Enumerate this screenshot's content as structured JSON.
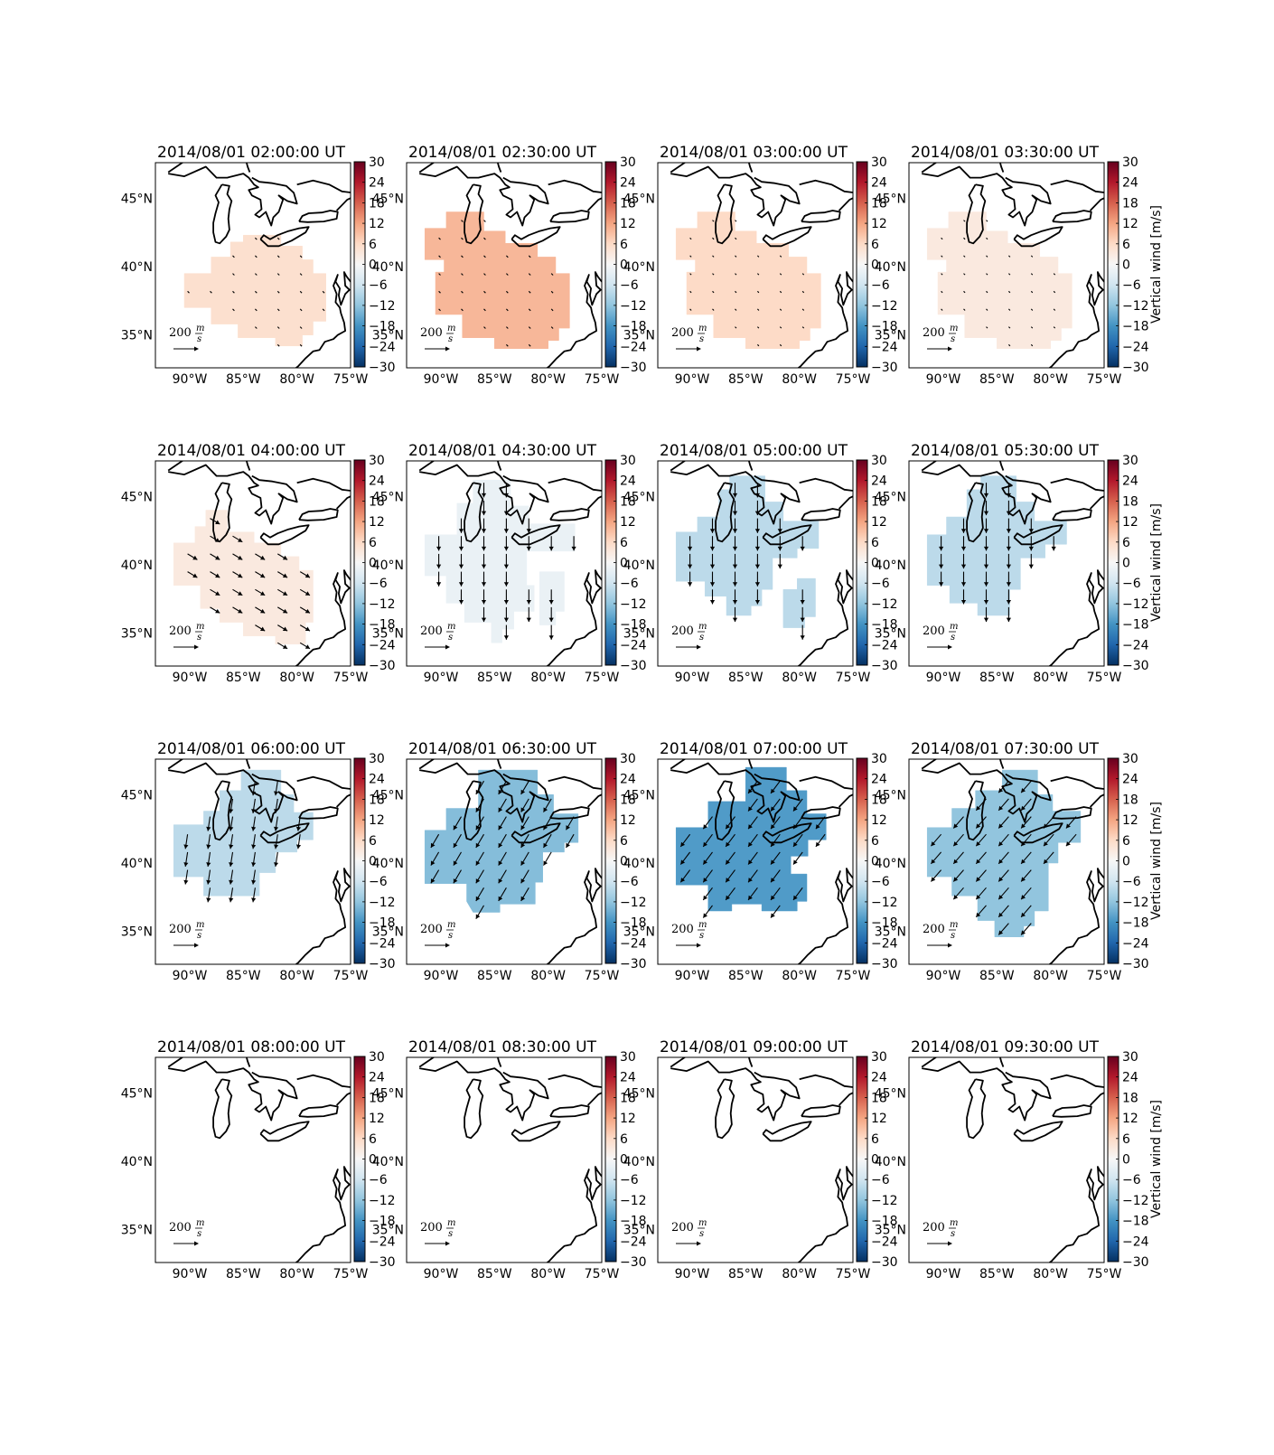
{
  "colorbar": {
    "ticks": [
      "30",
      "24",
      "18",
      "12",
      "6",
      "0",
      "−6",
      "−12",
      "−18",
      "−24",
      "−30"
    ],
    "label": "Vertical wind [m/s]",
    "vmin": -30,
    "vmax": 30
  },
  "axes": {
    "lon_ticks": [
      "90°W",
      "85°W",
      "80°W",
      "75°W"
    ],
    "lat_ticks": [
      "45°N",
      "40°N",
      "35°N"
    ]
  },
  "quiver_key": {
    "value": "200",
    "unit_num": "m",
    "unit_den": "s"
  },
  "panels": [
    {
      "title": "2014/08/01 02:00:00 UT",
      "vertical_wind": 5,
      "region": "r1",
      "arrow_len": 0.15,
      "arrow_dir": [
        0.6,
        0.6
      ],
      "show_cblabel": false
    },
    {
      "title": "2014/08/01 02:30:00 UT",
      "vertical_wind": 10,
      "region": "r2",
      "arrow_len": 0.15,
      "arrow_dir": [
        0.6,
        0.6
      ],
      "show_cblabel": false
    },
    {
      "title": "2014/08/01 03:00:00 UT",
      "vertical_wind": 6,
      "region": "r2",
      "arrow_len": 0.12,
      "arrow_dir": [
        0.6,
        0.6
      ],
      "show_cblabel": false
    },
    {
      "title": "2014/08/01 03:30:00 UT",
      "vertical_wind": 3,
      "region": "r2",
      "arrow_len": 0.12,
      "arrow_dir": [
        0.6,
        0.6
      ],
      "show_cblabel": true
    },
    {
      "title": "2014/08/01 04:00:00 UT",
      "vertical_wind": 3,
      "region": "r3",
      "arrow_len": 0.7,
      "arrow_dir": [
        0.75,
        0.45
      ],
      "show_cblabel": false
    },
    {
      "title": "2014/08/01 04:30:00 UT",
      "vertical_wind": -2,
      "region": "r4",
      "arrow_len": 0.9,
      "arrow_dir": [
        0,
        1
      ],
      "show_cblabel": false
    },
    {
      "title": "2014/08/01 05:00:00 UT",
      "vertical_wind": -8,
      "region": "r5",
      "arrow_len": 0.9,
      "arrow_dir": [
        0,
        1
      ],
      "show_cblabel": false
    },
    {
      "title": "2014/08/01 05:30:00 UT",
      "vertical_wind": -8,
      "region": "r6",
      "arrow_len": 0.9,
      "arrow_dir": [
        0,
        1
      ],
      "show_cblabel": true
    },
    {
      "title": "2014/08/01 06:00:00 UT",
      "vertical_wind": -8,
      "region": "r7",
      "arrow_len": 0.9,
      "arrow_dir": [
        -0.15,
        1
      ],
      "show_cblabel": false
    },
    {
      "title": "2014/08/01 06:30:00 UT",
      "vertical_wind": -13,
      "region": "r8",
      "arrow_len": 0.95,
      "arrow_dir": [
        -0.5,
        0.85
      ],
      "show_cblabel": false
    },
    {
      "title": "2014/08/01 07:00:00 UT",
      "vertical_wind": -17,
      "region": "r9",
      "arrow_len": 0.95,
      "arrow_dir": [
        -0.6,
        0.8
      ],
      "show_cblabel": false
    },
    {
      "title": "2014/08/01 07:30:00 UT",
      "vertical_wind": -12,
      "region": "r10",
      "arrow_len": 0.95,
      "arrow_dir": [
        -0.65,
        0.75
      ],
      "show_cblabel": true
    },
    {
      "title": "2014/08/01 08:00:00 UT",
      "vertical_wind": null,
      "region": "none",
      "arrow_len": 0,
      "arrow_dir": [
        0,
        0
      ],
      "show_cblabel": false
    },
    {
      "title": "2014/08/01 08:30:00 UT",
      "vertical_wind": null,
      "region": "none",
      "arrow_len": 0,
      "arrow_dir": [
        0,
        0
      ],
      "show_cblabel": false
    },
    {
      "title": "2014/08/01 09:00:00 UT",
      "vertical_wind": null,
      "region": "none",
      "arrow_len": 0,
      "arrow_dir": [
        0,
        0
      ],
      "show_cblabel": false
    },
    {
      "title": "2014/08/01 09:30:00 UT",
      "vertical_wind": null,
      "region": "none",
      "arrow_len": 0,
      "arrow_dir": [
        0,
        0
      ],
      "show_cblabel": true
    }
  ]
}
